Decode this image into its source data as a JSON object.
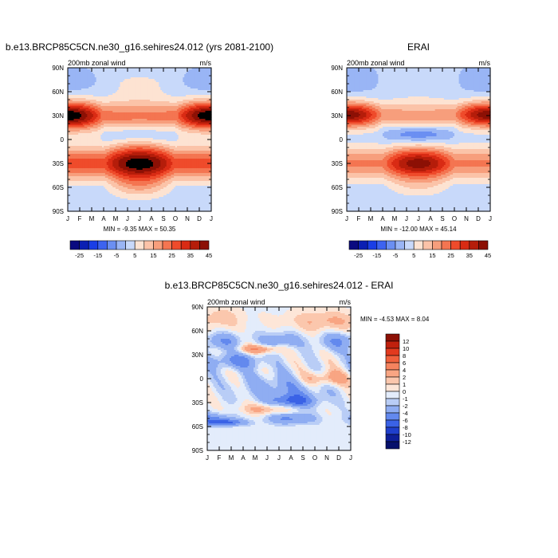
{
  "chart_data": [
    {
      "type": "heatmap",
      "title": "b.e13.BRCP85C5CN.ne30_g16.sehires24.012 (yrs 2081-2100)",
      "left_label": "200mb zonal wind",
      "right_label": "m/s",
      "x_ticks": [
        "J",
        "F",
        "M",
        "A",
        "M",
        "J",
        "J",
        "A",
        "S",
        "O",
        "N",
        "D",
        "J"
      ],
      "y_ticks": [
        "90N",
        "60N",
        "30N",
        "0",
        "30S",
        "60S",
        "90S"
      ],
      "min_max": "MIN =  -9.35 MAX =  50.35",
      "colorbar_labels": [
        "-25",
        "-15",
        "-5",
        "5",
        "15",
        "25",
        "35",
        "45"
      ],
      "colorbar_orientation": "horizontal",
      "colors": [
        "#0a0a80",
        "#0b1fb3",
        "#1a3ee6",
        "#3d63f0",
        "#6b8ff2",
        "#99b5f5",
        "#c8d9fa",
        "#fde3d2",
        "#fbc3a8",
        "#f79e7c",
        "#f47551",
        "#ef4b2b",
        "#d92b14",
        "#b51d0a",
        "#8c1005"
      ],
      "levels": [
        -25,
        -20,
        -15,
        -10,
        -5,
        0,
        5,
        10,
        15,
        20,
        25,
        30,
        35,
        40,
        45
      ],
      "ylim": [
        -90,
        90
      ],
      "grid": false
    },
    {
      "type": "heatmap",
      "title": "ERAI",
      "left_label": "200mb zonal wind",
      "right_label": "m/s",
      "x_ticks": [
        "J",
        "F",
        "M",
        "A",
        "M",
        "J",
        "J",
        "A",
        "S",
        "O",
        "N",
        "D",
        "J"
      ],
      "y_ticks": [
        "90N",
        "60N",
        "30N",
        "0",
        "30S",
        "60S",
        "90S"
      ],
      "min_max": "MIN = -12.00 MAX =  45.14",
      "colorbar_labels": [
        "-25",
        "-15",
        "-5",
        "5",
        "15",
        "25",
        "35",
        "45"
      ],
      "colorbar_orientation": "horizontal",
      "ylim": [
        -90,
        90
      ],
      "grid": false
    },
    {
      "type": "heatmap",
      "title": "b.e13.BRCP85C5CN.ne30_g16.sehires24.012 - ERAI",
      "left_label": "200mb zonal wind",
      "right_label": "m/s",
      "x_ticks": [
        "J",
        "F",
        "M",
        "A",
        "M",
        "J",
        "J",
        "A",
        "S",
        "O",
        "N",
        "D",
        "J"
      ],
      "y_ticks": [
        "90N",
        "60N",
        "30N",
        "0",
        "30S",
        "60S",
        "90S"
      ],
      "min_max": "MIN =  -4.53 MAX =   8.04",
      "colorbar_labels": [
        "12",
        "10",
        "8",
        "6",
        "4",
        "2",
        "1",
        "0",
        "-1",
        "-2",
        "-4",
        "-6",
        "-8",
        "-10",
        "-12"
      ],
      "colorbar_orientation": "vertical",
      "colors": [
        "#8c1005",
        "#c0200d",
        "#e23a1e",
        "#f0603c",
        "#f5835e",
        "#f8a583",
        "#fbc7ad",
        "#fde6d8",
        "#e3ecfb",
        "#b9cdf6",
        "#8fadf2",
        "#6389ee",
        "#3a62e6",
        "#1f3fcc",
        "#0e1f99",
        "#06106b"
      ],
      "levels": [
        -12,
        -10,
        -8,
        -6,
        -4,
        -2,
        -1,
        0,
        1,
        2,
        4,
        6,
        8,
        10,
        12
      ],
      "ylim": [
        -90,
        90
      ],
      "grid": false
    }
  ]
}
